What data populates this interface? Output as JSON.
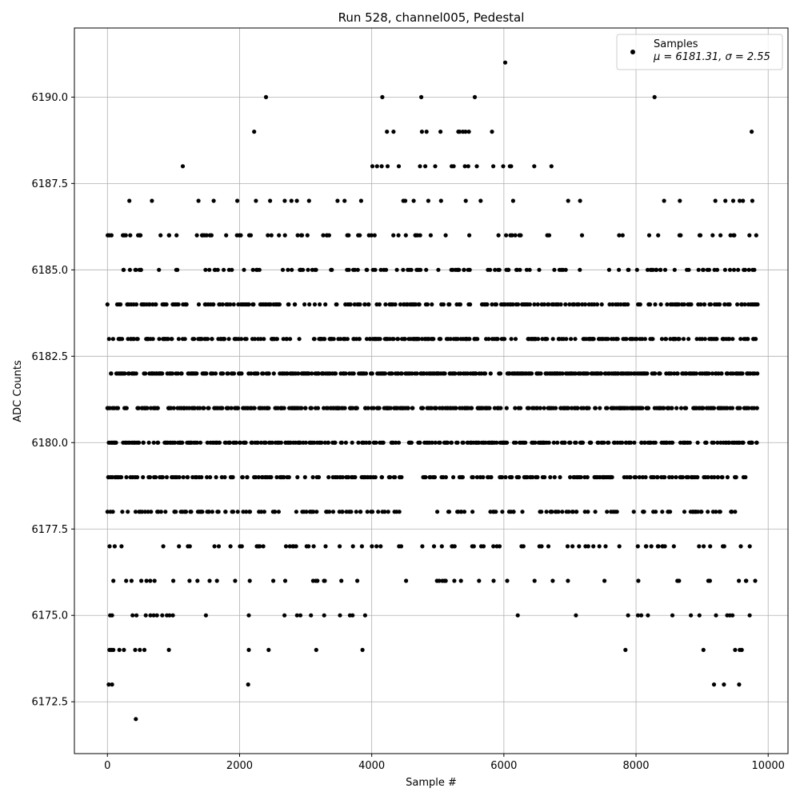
{
  "chart_data": {
    "type": "scatter",
    "title": "Run 528, channel005, Pedestal",
    "xlabel": "Sample #",
    "ylabel": "ADC Counts",
    "xlim": [
      -500,
      10300
    ],
    "ylim": [
      6171.0,
      6192.0
    ],
    "xticks": [
      0,
      2000,
      4000,
      6000,
      8000,
      10000
    ],
    "xtick_labels": [
      "0",
      "2000",
      "4000",
      "6000",
      "8000",
      "10000"
    ],
    "yticks": [
      6172.5,
      6175.0,
      6177.5,
      6180.0,
      6182.5,
      6185.0,
      6187.5,
      6190.0
    ],
    "ytick_labels": [
      "6172.5",
      "6175.0",
      "6177.5",
      "6180.0",
      "6182.5",
      "6185.0",
      "6187.5",
      "6190.0"
    ],
    "grid": true,
    "marker_color": "#000000",
    "legend": {
      "placement": "top-right",
      "entries": [
        {
          "name": "Samples",
          "stats": "μ = 6181.31, σ = 2.55"
        }
      ]
    },
    "series": [
      {
        "name": "Samples",
        "x_range": [
          0,
          9840
        ],
        "mean": 6181.31,
        "sigma": 2.55,
        "dense_levels": [
          6176,
          6177,
          6178,
          6179,
          6180,
          6181,
          6182,
          6183,
          6184,
          6185,
          6186,
          6187
        ],
        "points": [
          [
            0,
            6184
          ],
          [
            0,
            6181
          ],
          [
            20,
            6173
          ],
          [
            70,
            6173
          ],
          [
            30,
            6174
          ],
          [
            60,
            6174
          ],
          [
            90,
            6174
          ],
          [
            40,
            6175
          ],
          [
            70,
            6175
          ],
          [
            180,
            6174
          ],
          [
            250,
            6174
          ],
          [
            430,
            6172
          ],
          [
            420,
            6174
          ],
          [
            380,
            6175
          ],
          [
            440,
            6175
          ],
          [
            490,
            6174
          ],
          [
            560,
            6174
          ],
          [
            580,
            6175
          ],
          [
            650,
            6175
          ],
          [
            700,
            6175
          ],
          [
            750,
            6175
          ],
          [
            830,
            6175
          ],
          [
            900,
            6175
          ],
          [
            930,
            6174
          ],
          [
            940,
            6175
          ],
          [
            990,
            6175
          ],
          [
            1140,
            6188
          ],
          [
            1490,
            6175
          ],
          [
            2130,
            6173
          ],
          [
            2140,
            6174
          ],
          [
            2140,
            6175
          ],
          [
            2220,
            6189
          ],
          [
            2400,
            6190
          ],
          [
            2440,
            6174
          ],
          [
            2680,
            6175
          ],
          [
            2870,
            6175
          ],
          [
            2920,
            6175
          ],
          [
            3080,
            6175
          ],
          [
            3160,
            6174
          ],
          [
            3280,
            6175
          ],
          [
            3520,
            6175
          ],
          [
            3670,
            6175
          ],
          [
            3710,
            6175
          ],
          [
            3860,
            6174
          ],
          [
            3900,
            6175
          ],
          [
            4010,
            6188
          ],
          [
            4080,
            6188
          ],
          [
            4150,
            6188
          ],
          [
            4160,
            6190
          ],
          [
            4230,
            6189
          ],
          [
            4240,
            6188
          ],
          [
            4330,
            6189
          ],
          [
            4410,
            6188
          ],
          [
            4730,
            6188
          ],
          [
            4750,
            6190
          ],
          [
            4760,
            6189
          ],
          [
            4810,
            6188
          ],
          [
            4830,
            6189
          ],
          [
            4960,
            6188
          ],
          [
            5040,
            6189
          ],
          [
            5120,
            6176
          ],
          [
            5210,
            6188
          ],
          [
            5240,
            6188
          ],
          [
            5310,
            6189
          ],
          [
            5330,
            6189
          ],
          [
            5350,
            6176
          ],
          [
            5380,
            6189
          ],
          [
            5410,
            6188
          ],
          [
            5420,
            6189
          ],
          [
            5460,
            6188
          ],
          [
            5470,
            6189
          ],
          [
            5560,
            6190
          ],
          [
            5590,
            6188
          ],
          [
            5820,
            6189
          ],
          [
            5840,
            6188
          ],
          [
            5990,
            6188
          ],
          [
            6020,
            6191
          ],
          [
            6090,
            6188
          ],
          [
            6110,
            6188
          ],
          [
            6210,
            6175
          ],
          [
            6460,
            6188
          ],
          [
            6720,
            6188
          ],
          [
            7090,
            6175
          ],
          [
            7840,
            6174
          ],
          [
            7880,
            6175
          ],
          [
            8030,
            6175
          ],
          [
            8080,
            6175
          ],
          [
            8180,
            6175
          ],
          [
            8280,
            6190
          ],
          [
            8550,
            6175
          ],
          [
            8830,
            6175
          ],
          [
            8960,
            6175
          ],
          [
            9020,
            6174
          ],
          [
            9180,
            6173
          ],
          [
            9210,
            6175
          ],
          [
            9330,
            6173
          ],
          [
            9380,
            6175
          ],
          [
            9420,
            6175
          ],
          [
            9460,
            6175
          ],
          [
            9500,
            6174
          ],
          [
            9560,
            6173
          ],
          [
            9570,
            6174
          ],
          [
            9600,
            6174
          ],
          [
            9720,
            6175
          ],
          [
            9750,
            6189
          ],
          [
            9760,
            6187
          ]
        ]
      }
    ]
  }
}
